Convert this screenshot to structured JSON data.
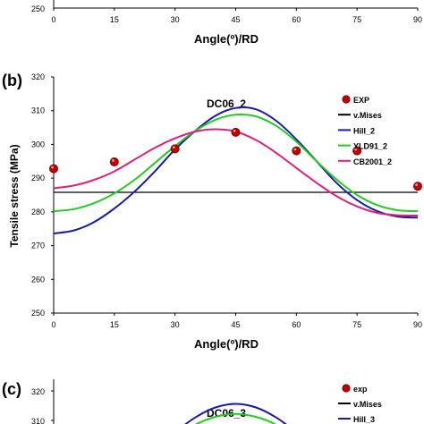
{
  "top_panel": {
    "ytick": "250",
    "xticks": [
      "0",
      "15",
      "30",
      "45",
      "60",
      "75",
      "90"
    ],
    "xlabel": "Angle(º)/RD"
  },
  "panel_b": {
    "label": "(b)",
    "ylabel": "Tensile stress (MPa)"
  },
  "panel_c": {
    "label": "(c)",
    "title": "DC06_3",
    "yticks": [
      "320",
      "310"
    ],
    "legend": [
      {
        "name": "exp",
        "color": "#cc0000",
        "kind": "marker"
      },
      {
        "name": "v.Mises",
        "color": "#000000",
        "kind": "line"
      },
      {
        "name": "Hill_3",
        "color": "#1a1aa6",
        "kind": "line"
      }
    ]
  },
  "chart_data": [
    {
      "type": "line",
      "title": "DC06_2",
      "xlabel": "Angle(º)/RD",
      "ylabel": "Tensile stress (MPa)",
      "xlim": [
        0,
        90
      ],
      "ylim": [
        250,
        320
      ],
      "xticks": [
        0,
        15,
        30,
        45,
        60,
        75,
        90
      ],
      "yticks": [
        250,
        260,
        270,
        280,
        290,
        300,
        310,
        320
      ],
      "legend_position": "top-right",
      "grid": false,
      "series": [
        {
          "name": "EXP",
          "kind": "marker",
          "color": "#cc0000",
          "x": [
            0,
            15,
            30,
            45,
            60,
            75,
            90
          ],
          "y": [
            292.8,
            294.8,
            298.7,
            303.6,
            298.1,
            298.1,
            287.6
          ]
        },
        {
          "name": "v.Mises",
          "kind": "line",
          "color": "#000000",
          "x": [
            0,
            90
          ],
          "y": [
            285.8,
            285.8
          ]
        },
        {
          "name": "Hill_2",
          "kind": "line",
          "color": "#1a1aa6",
          "x": [
            0,
            5,
            10,
            15,
            20,
            25,
            30,
            35,
            40,
            45,
            50,
            55,
            60,
            65,
            70,
            75,
            80,
            85,
            90
          ],
          "y": [
            273.6,
            274.5,
            277.0,
            281.0,
            286.0,
            292.0,
            298.5,
            304.0,
            308.5,
            310.8,
            310.4,
            307.0,
            301.5,
            295.0,
            288.5,
            283.5,
            280.2,
            278.6,
            278.3
          ]
        },
        {
          "name": "YLD91_2",
          "kind": "line",
          "color": "#22cc22",
          "x": [
            0,
            5,
            10,
            15,
            20,
            25,
            30,
            35,
            40,
            45,
            50,
            55,
            60,
            65,
            70,
            75,
            80,
            85,
            90
          ],
          "y": [
            280.2,
            280.8,
            282.6,
            285.5,
            289.5,
            294.5,
            299.5,
            304.0,
            307.3,
            308.8,
            308.3,
            305.5,
            300.8,
            295.0,
            289.5,
            285.0,
            282.0,
            280.5,
            280.2
          ]
        },
        {
          "name": "CB2001_2",
          "kind": "line",
          "color": "#e0207a",
          "x": [
            0,
            5,
            10,
            15,
            20,
            25,
            30,
            35,
            40,
            45,
            50,
            55,
            60,
            65,
            70,
            75,
            80,
            85,
            90
          ],
          "y": [
            287.0,
            287.8,
            289.5,
            292.0,
            295.5,
            299.0,
            301.8,
            303.8,
            304.5,
            303.8,
            301.3,
            297.5,
            293.0,
            288.6,
            284.6,
            281.6,
            279.7,
            279.0,
            278.9
          ]
        }
      ]
    },
    {
      "type": "line",
      "title": "DC06_3",
      "xlim": [
        0,
        90
      ],
      "ylim": [
        300,
        320
      ],
      "legend_position": "top-right",
      "series": [
        {
          "name": "Hill_3",
          "kind": "line",
          "color": "#1a1aa6",
          "x": [
            30,
            35,
            40,
            45,
            50,
            55,
            60
          ],
          "y": [
            306.0,
            311.0,
            314.4,
            315.6,
            314.4,
            311.0,
            306.0
          ]
        },
        {
          "kind": "line",
          "color": "#22cc22",
          "x": [
            30,
            35,
            40,
            45,
            50,
            55,
            60
          ],
          "y": [
            303.5,
            308.5,
            311.2,
            312.2,
            311.2,
            308.5,
            303.5
          ]
        }
      ]
    }
  ]
}
